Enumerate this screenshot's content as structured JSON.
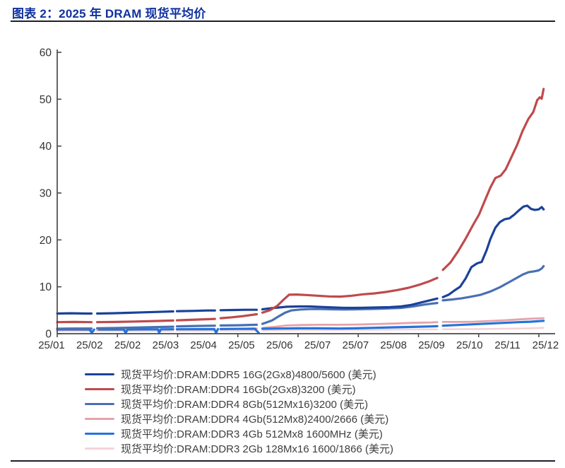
{
  "header": {
    "title": "图表 2：2025 年 DRAM 现货平均价"
  },
  "style": {
    "title_color": "#0f31a0",
    "rule_color": "#1e2029",
    "axis_color": "#4a4a4a",
    "tick_label_color": "#333333"
  },
  "chart_data": {
    "type": "line",
    "title": "2025 年 DRAM 现货平均价",
    "unit": "美元",
    "grid": false,
    "legend_position": "bottom",
    "ylim": [
      0,
      60
    ],
    "y_ticks": [
      0,
      10,
      20,
      30,
      40,
      50,
      60
    ],
    "x_tick_labels": [
      "25/01",
      "25/02",
      "25/02",
      "25/03",
      "25/04",
      "25/05",
      "25/06",
      "25/07",
      "25/07",
      "25/08",
      "25/09",
      "25/10",
      "25/11",
      "25/12"
    ],
    "x_note": "x of each point is in label-slot units (0 = 25/01 ... 13 = 25/12); null = quote gap on Chinese holidays",
    "series": [
      {
        "name": "现货平均价:DRAM:DDR5 16G(2Gx8)4800/5600 (美元)",
        "color": "#1b4298",
        "width": 3.2,
        "points": [
          [
            0.15,
            4.3
          ],
          [
            0.5,
            4.35
          ],
          [
            0.9,
            4.3
          ],
          [
            1.05,
            4.3
          ],
          null,
          [
            1.2,
            4.3
          ],
          [
            1.6,
            4.35
          ],
          [
            2.0,
            4.45
          ],
          [
            2.4,
            4.55
          ],
          [
            2.8,
            4.65
          ],
          [
            3.2,
            4.75
          ],
          null,
          [
            3.3,
            4.8
          ],
          [
            3.7,
            4.85
          ],
          [
            4.1,
            4.95
          ],
          [
            4.3,
            4.95
          ],
          null,
          [
            4.45,
            5.0
          ],
          [
            4.8,
            5.05
          ],
          [
            5.1,
            5.1
          ],
          [
            5.4,
            5.1
          ],
          null,
          [
            5.55,
            5.2
          ],
          [
            5.8,
            5.45
          ],
          [
            6.0,
            5.6
          ],
          [
            6.2,
            5.75
          ],
          [
            6.5,
            5.8
          ],
          [
            6.8,
            5.8
          ],
          [
            7.1,
            5.7
          ],
          [
            7.4,
            5.6
          ],
          [
            7.7,
            5.5
          ],
          [
            8.0,
            5.5
          ],
          [
            8.3,
            5.55
          ],
          [
            8.6,
            5.6
          ],
          [
            8.9,
            5.65
          ],
          [
            9.2,
            5.8
          ],
          [
            9.45,
            6.1
          ],
          [
            9.7,
            6.6
          ],
          [
            9.95,
            7.1
          ],
          [
            10.15,
            7.5
          ],
          null,
          [
            10.3,
            7.8
          ],
          [
            10.45,
            8.3
          ],
          [
            10.6,
            9.2
          ],
          [
            10.75,
            10.0
          ],
          [
            10.9,
            11.8
          ],
          [
            11.05,
            14.2
          ],
          [
            11.2,
            15.0
          ],
          [
            11.32,
            15.3
          ],
          [
            11.45,
            17.8
          ],
          [
            11.55,
            20.2
          ],
          [
            11.68,
            22.6
          ],
          [
            11.8,
            23.8
          ],
          [
            11.92,
            24.4
          ],
          [
            12.05,
            24.6
          ],
          [
            12.18,
            25.4
          ],
          [
            12.3,
            26.3
          ],
          [
            12.42,
            27.1
          ],
          [
            12.52,
            27.3
          ],
          [
            12.62,
            26.6
          ],
          [
            12.72,
            26.4
          ],
          [
            12.82,
            26.5
          ],
          [
            12.9,
            27.0
          ],
          [
            12.95,
            26.5
          ]
        ]
      },
      {
        "name": "现货平均价:DRAM:DDR4 16Gb(2Gx8)3200 (美元)",
        "color": "#bf4a4c",
        "width": 3.2,
        "points": [
          [
            0.15,
            2.45
          ],
          [
            0.6,
            2.5
          ],
          [
            1.05,
            2.45
          ],
          null,
          [
            1.2,
            2.45
          ],
          [
            1.7,
            2.5
          ],
          [
            2.2,
            2.6
          ],
          [
            2.7,
            2.7
          ],
          [
            3.2,
            2.8
          ],
          null,
          [
            3.3,
            2.85
          ],
          [
            3.8,
            3.0
          ],
          [
            4.3,
            3.15
          ],
          null,
          [
            4.45,
            3.3
          ],
          [
            4.75,
            3.5
          ],
          [
            5.05,
            3.75
          ],
          [
            5.4,
            4.15
          ],
          null,
          [
            5.55,
            4.5
          ],
          [
            5.75,
            5.0
          ],
          [
            5.95,
            6.0
          ],
          [
            6.1,
            7.2
          ],
          [
            6.25,
            8.3
          ],
          [
            6.45,
            8.35
          ],
          [
            6.7,
            8.25
          ],
          [
            7.0,
            8.1
          ],
          [
            7.3,
            7.95
          ],
          [
            7.6,
            7.9
          ],
          [
            7.9,
            8.1
          ],
          [
            8.2,
            8.4
          ],
          [
            8.5,
            8.6
          ],
          [
            8.8,
            8.9
          ],
          [
            9.1,
            9.3
          ],
          [
            9.4,
            9.8
          ],
          [
            9.7,
            10.5
          ],
          [
            9.95,
            11.2
          ],
          [
            10.15,
            11.9
          ],
          null,
          [
            10.3,
            13.6
          ],
          [
            10.5,
            15.2
          ],
          [
            10.7,
            17.6
          ],
          [
            10.9,
            20.3
          ],
          [
            11.1,
            23.3
          ],
          [
            11.25,
            25.4
          ],
          [
            11.4,
            28.3
          ],
          [
            11.55,
            31.2
          ],
          [
            11.68,
            33.2
          ],
          [
            11.82,
            33.7
          ],
          [
            11.95,
            35.0
          ],
          [
            12.1,
            37.6
          ],
          [
            12.25,
            40.2
          ],
          [
            12.4,
            43.3
          ],
          [
            12.55,
            45.8
          ],
          [
            12.68,
            47.3
          ],
          [
            12.78,
            49.8
          ],
          [
            12.85,
            50.4
          ],
          [
            12.9,
            50.1
          ],
          [
            12.95,
            52.2
          ]
        ]
      },
      {
        "name": "现货平均价:DRAM:DDR4 8Gb(512Mx16)3200 (美元)",
        "color": "#4a6fb5",
        "width": 3.2,
        "points": [
          [
            0.15,
            1.05
          ],
          [
            0.6,
            1.1
          ],
          [
            1.05,
            1.1
          ],
          null,
          [
            1.2,
            1.15
          ],
          [
            1.7,
            1.2
          ],
          [
            2.2,
            1.3
          ],
          [
            2.7,
            1.4
          ],
          [
            3.2,
            1.5
          ],
          null,
          [
            3.3,
            1.55
          ],
          [
            3.8,
            1.65
          ],
          [
            4.3,
            1.7
          ],
          null,
          [
            4.45,
            1.75
          ],
          [
            4.9,
            1.8
          ],
          [
            5.4,
            1.9
          ],
          null,
          [
            5.55,
            2.1
          ],
          [
            5.8,
            2.8
          ],
          [
            6.0,
            3.8
          ],
          [
            6.15,
            4.5
          ],
          [
            6.3,
            4.95
          ],
          [
            6.55,
            5.15
          ],
          [
            6.8,
            5.25
          ],
          [
            7.1,
            5.25
          ],
          [
            7.4,
            5.2
          ],
          [
            7.7,
            5.15
          ],
          [
            8.0,
            5.2
          ],
          [
            8.3,
            5.25
          ],
          [
            8.6,
            5.3
          ],
          [
            8.9,
            5.4
          ],
          [
            9.2,
            5.5
          ],
          [
            9.5,
            5.8
          ],
          [
            9.8,
            6.2
          ],
          [
            10.05,
            6.45
          ],
          [
            10.15,
            6.55
          ],
          null,
          [
            10.3,
            7.1
          ],
          [
            10.55,
            7.3
          ],
          [
            10.8,
            7.55
          ],
          [
            11.05,
            7.9
          ],
          [
            11.3,
            8.3
          ],
          [
            11.55,
            9.0
          ],
          [
            11.8,
            9.9
          ],
          [
            12.0,
            10.8
          ],
          [
            12.2,
            11.7
          ],
          [
            12.4,
            12.6
          ],
          [
            12.55,
            13.1
          ],
          [
            12.7,
            13.3
          ],
          [
            12.82,
            13.5
          ],
          [
            12.9,
            13.9
          ],
          [
            12.95,
            14.4
          ]
        ]
      },
      {
        "name": "现货平均价:DRAM:DDR4 4Gb(512Mx8)2400/2666 (美元)",
        "color": "#e5a3aa",
        "width": 2.8,
        "points": [
          [
            0.15,
            0.8
          ],
          [
            0.6,
            0.8
          ],
          [
            1.05,
            0.8
          ],
          null,
          [
            1.2,
            0.8
          ],
          [
            2.0,
            0.85
          ],
          [
            2.8,
            0.9
          ],
          [
            3.2,
            0.9
          ],
          null,
          [
            3.3,
            0.9
          ],
          [
            4.3,
            0.95
          ],
          null,
          [
            4.45,
            1.0
          ],
          [
            5.0,
            1.05
          ],
          [
            5.4,
            1.1
          ],
          null,
          [
            5.55,
            1.2
          ],
          [
            5.9,
            1.5
          ],
          [
            6.2,
            1.75
          ],
          [
            6.6,
            1.85
          ],
          [
            7.0,
            1.9
          ],
          [
            7.5,
            1.9
          ],
          [
            8.0,
            1.95
          ],
          [
            8.5,
            2.05
          ],
          [
            9.0,
            2.15
          ],
          [
            9.5,
            2.3
          ],
          [
            10.0,
            2.4
          ],
          [
            10.15,
            2.45
          ],
          null,
          [
            10.3,
            2.5
          ],
          [
            10.7,
            2.5
          ],
          [
            11.1,
            2.55
          ],
          [
            11.5,
            2.7
          ],
          [
            11.9,
            2.85
          ],
          [
            12.3,
            3.05
          ],
          [
            12.6,
            3.2
          ],
          [
            12.95,
            3.3
          ]
        ]
      },
      {
        "name": "现货平均价:DRAM:DDR3 4Gb 512Mx8 1600MHz (美元)",
        "color": "#2474d9",
        "width": 3.2,
        "points": [
          [
            0.15,
            0.9
          ],
          [
            0.5,
            0.92
          ],
          [
            0.9,
            0.9
          ],
          [
            1.0,
            0.88
          ],
          [
            1.06,
            0.2
          ],
          [
            1.12,
            0.88
          ],
          null,
          [
            1.25,
            0.9
          ],
          [
            1.6,
            0.9
          ],
          [
            1.9,
            0.9
          ],
          [
            1.95,
            0.15
          ],
          [
            2.0,
            0.9
          ],
          [
            2.4,
            0.92
          ],
          [
            2.8,
            0.93
          ],
          [
            2.83,
            0.2
          ],
          [
            2.88,
            0.93
          ],
          [
            3.2,
            0.95
          ],
          null,
          [
            3.3,
            0.95
          ],
          [
            3.8,
            0.97
          ],
          [
            4.28,
            0.98
          ],
          [
            4.33,
            0.2
          ],
          [
            4.38,
            0.98
          ],
          null,
          [
            4.45,
            1.0
          ],
          [
            4.9,
            1.02
          ],
          [
            5.35,
            1.05
          ],
          [
            5.45,
            0.2
          ],
          null,
          [
            5.55,
            1.05
          ],
          [
            6.0,
            1.1
          ],
          [
            6.5,
            1.15
          ],
          [
            7.0,
            1.15
          ],
          [
            7.57,
            1.1
          ],
          [
            8.0,
            1.15
          ],
          [
            8.5,
            1.25
          ],
          [
            9.0,
            1.35
          ],
          [
            9.5,
            1.45
          ],
          [
            10.0,
            1.55
          ],
          [
            10.15,
            1.6
          ],
          null,
          [
            10.3,
            1.7
          ],
          [
            10.7,
            1.85
          ],
          [
            11.1,
            2.0
          ],
          [
            11.5,
            2.15
          ],
          [
            11.9,
            2.3
          ],
          [
            12.3,
            2.45
          ],
          [
            12.6,
            2.55
          ],
          [
            12.95,
            2.75
          ]
        ]
      },
      {
        "name": "现货平均价:DRAM:DDR3 2Gb 128Mx16 1600/1866 (美元)",
        "color": "#f3d4d9",
        "width": 2.6,
        "points": [
          [
            0.15,
            0.6
          ],
          [
            0.6,
            0.6
          ],
          [
            1.05,
            0.6
          ],
          null,
          [
            1.2,
            0.6
          ],
          [
            2.0,
            0.6
          ],
          [
            2.8,
            0.62
          ],
          [
            3.2,
            0.62
          ],
          null,
          [
            3.3,
            0.63
          ],
          [
            4.3,
            0.65
          ],
          null,
          [
            4.45,
            0.65
          ],
          [
            5.4,
            0.68
          ],
          null,
          [
            5.55,
            0.7
          ],
          [
            6.0,
            0.72
          ],
          [
            6.5,
            0.75
          ],
          [
            7.0,
            0.78
          ],
          [
            7.5,
            0.8
          ],
          [
            8.0,
            0.82
          ],
          [
            8.5,
            0.85
          ],
          [
            9.0,
            0.88
          ],
          [
            9.5,
            0.9
          ],
          [
            10.0,
            0.92
          ],
          [
            10.15,
            0.92
          ],
          null,
          [
            10.3,
            0.95
          ],
          [
            10.8,
            0.97
          ],
          [
            11.3,
            1.0
          ],
          [
            11.8,
            1.05
          ],
          [
            12.3,
            1.1
          ],
          [
            12.6,
            1.15
          ],
          [
            12.95,
            1.25
          ]
        ]
      }
    ]
  }
}
